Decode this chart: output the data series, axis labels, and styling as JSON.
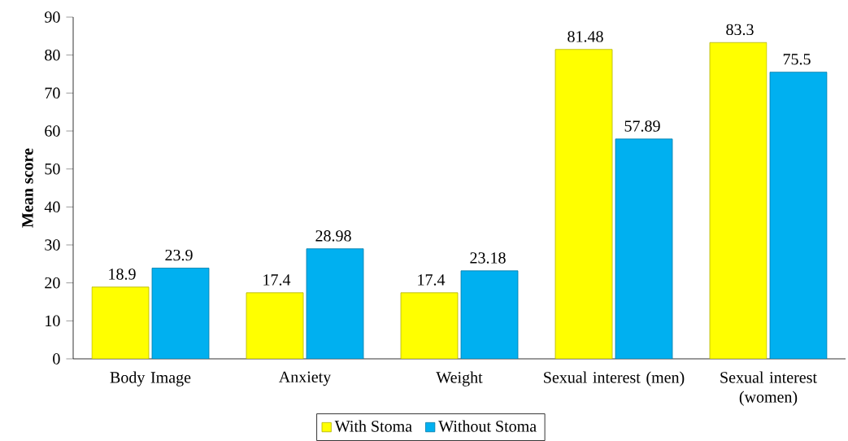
{
  "chart_data": {
    "type": "bar",
    "ylabel": "Mean score",
    "categories": [
      "Body Image",
      "Anxiety",
      "Weight",
      "Sexual interest (men)",
      "Sexual interest (women)"
    ],
    "series": [
      {
        "name": "With Stoma",
        "color": "#ffff00",
        "values": [
          18.9,
          17.4,
          17.4,
          81.48,
          83.3
        ]
      },
      {
        "name": "Without Stoma",
        "color": "#00b0f0",
        "values": [
          23.9,
          28.98,
          23.18,
          57.89,
          75.5
        ]
      }
    ],
    "ylim": [
      0,
      90
    ],
    "yticks": [
      0,
      10,
      20,
      30,
      40,
      50,
      60,
      70,
      80,
      90
    ],
    "data_labels": true,
    "legend": "bottom",
    "grid": false
  }
}
